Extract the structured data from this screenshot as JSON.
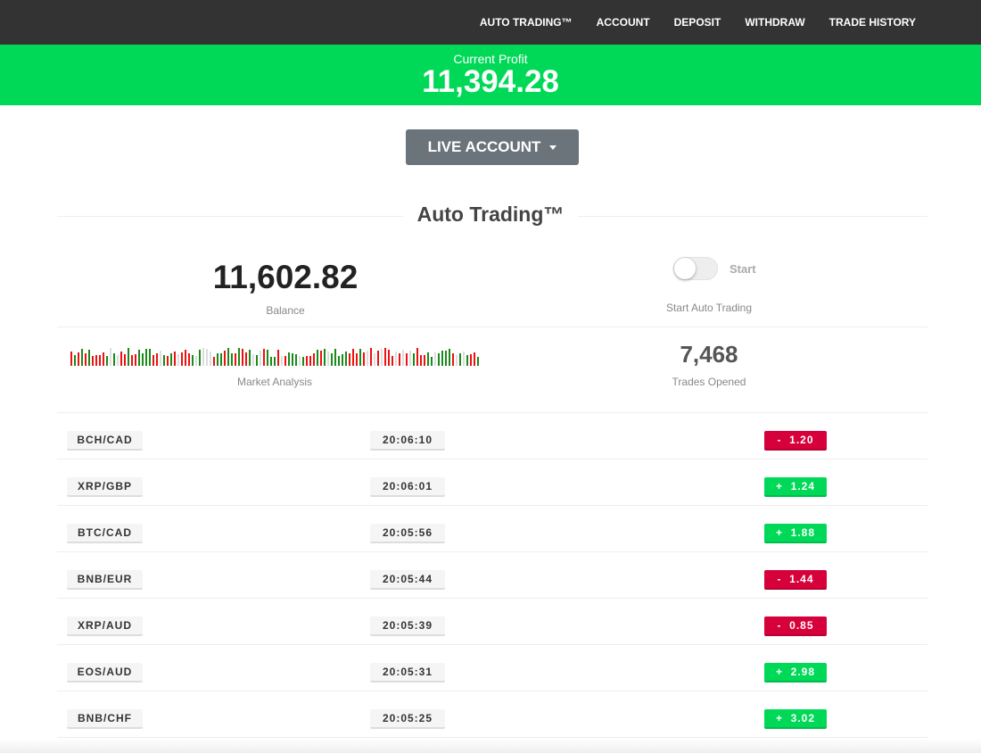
{
  "nav": {
    "items": [
      "AUTO TRADING™",
      "ACCOUNT",
      "DEPOSIT",
      "WITHDRAW",
      "TRADE HISTORY"
    ]
  },
  "profit": {
    "label": "Current Profit",
    "value": "11,394.28"
  },
  "account_button": "LIVE ACCOUNT",
  "section_title": "Auto Trading™",
  "balance": {
    "value": "11,602.82",
    "label": "Balance"
  },
  "toggle": {
    "label": "Start",
    "caption": "Start Auto Trading",
    "on": false
  },
  "market": {
    "label": "Market Analysis",
    "colors": {
      "up": "#1a8a1a",
      "down": "#ee1111",
      "neutral": "#dddddd"
    }
  },
  "trades": {
    "value": "7,468",
    "label": "Trades Opened"
  },
  "colors": {
    "positive": "#00d957",
    "negative": "#d6003a",
    "header": "#333333"
  },
  "rows": [
    {
      "pair": "BCH/CAD",
      "time": "20:06:10",
      "amount": "-  1.20",
      "positive": false
    },
    {
      "pair": "XRP/GBP",
      "time": "20:06:01",
      "amount": "+  1.24",
      "positive": true
    },
    {
      "pair": "BTC/CAD",
      "time": "20:05:56",
      "amount": "+  1.88",
      "positive": true
    },
    {
      "pair": "BNB/EUR",
      "time": "20:05:44",
      "amount": "-  1.44",
      "positive": false
    },
    {
      "pair": "XRP/AUD",
      "time": "20:05:39",
      "amount": "-  0.85",
      "positive": false
    },
    {
      "pair": "EOS/AUD",
      "time": "20:05:31",
      "amount": "+  2.98",
      "positive": true
    },
    {
      "pair": "BNB/CHF",
      "time": "20:05:25",
      "amount": "+  3.02",
      "positive": true
    }
  ]
}
